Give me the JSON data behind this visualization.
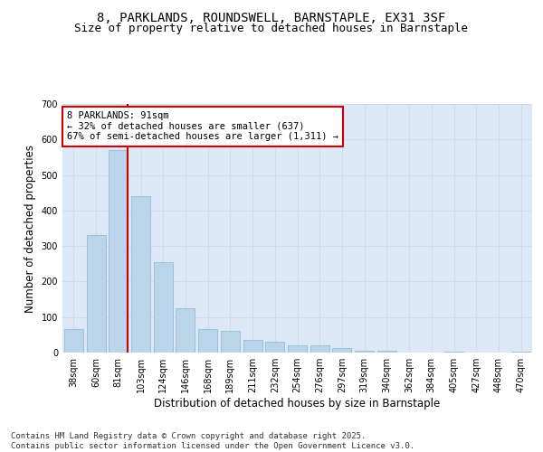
{
  "title_line1": "8, PARKLANDS, ROUNDSWELL, BARNSTAPLE, EX31 3SF",
  "title_line2": "Size of property relative to detached houses in Barnstaple",
  "xlabel": "Distribution of detached houses by size in Barnstaple",
  "ylabel": "Number of detached properties",
  "categories": [
    "38sqm",
    "60sqm",
    "81sqm",
    "103sqm",
    "124sqm",
    "146sqm",
    "168sqm",
    "189sqm",
    "211sqm",
    "232sqm",
    "254sqm",
    "276sqm",
    "297sqm",
    "319sqm",
    "340sqm",
    "362sqm",
    "384sqm",
    "405sqm",
    "427sqm",
    "448sqm",
    "470sqm"
  ],
  "bar_heights": [
    65,
    330,
    570,
    440,
    255,
    125,
    65,
    60,
    35,
    30,
    20,
    20,
    12,
    5,
    5,
    1,
    0,
    2,
    0,
    0,
    2
  ],
  "bar_color": "#bad4ea",
  "bar_edge_color": "#8ab4d4",
  "grid_color": "#ccd8ec",
  "background_color": "#dce8f5",
  "vline_x_index": 2,
  "vline_color": "#cc0000",
  "annotation_text": "8 PARKLANDS: 91sqm\n← 32% of detached houses are smaller (637)\n67% of semi-detached houses are larger (1,311) →",
  "annotation_box_color": "#ffffff",
  "annotation_box_edge": "#cc0000",
  "ylim": [
    0,
    700
  ],
  "yticks": [
    0,
    100,
    200,
    300,
    400,
    500,
    600,
    700
  ],
  "footnote": "Contains HM Land Registry data © Crown copyright and database right 2025.\nContains public sector information licensed under the Open Government Licence v3.0.",
  "title_fontsize": 10,
  "subtitle_fontsize": 9,
  "axis_label_fontsize": 8.5,
  "tick_fontsize": 7,
  "footnote_fontsize": 6.5,
  "annotation_fontsize": 7.5
}
